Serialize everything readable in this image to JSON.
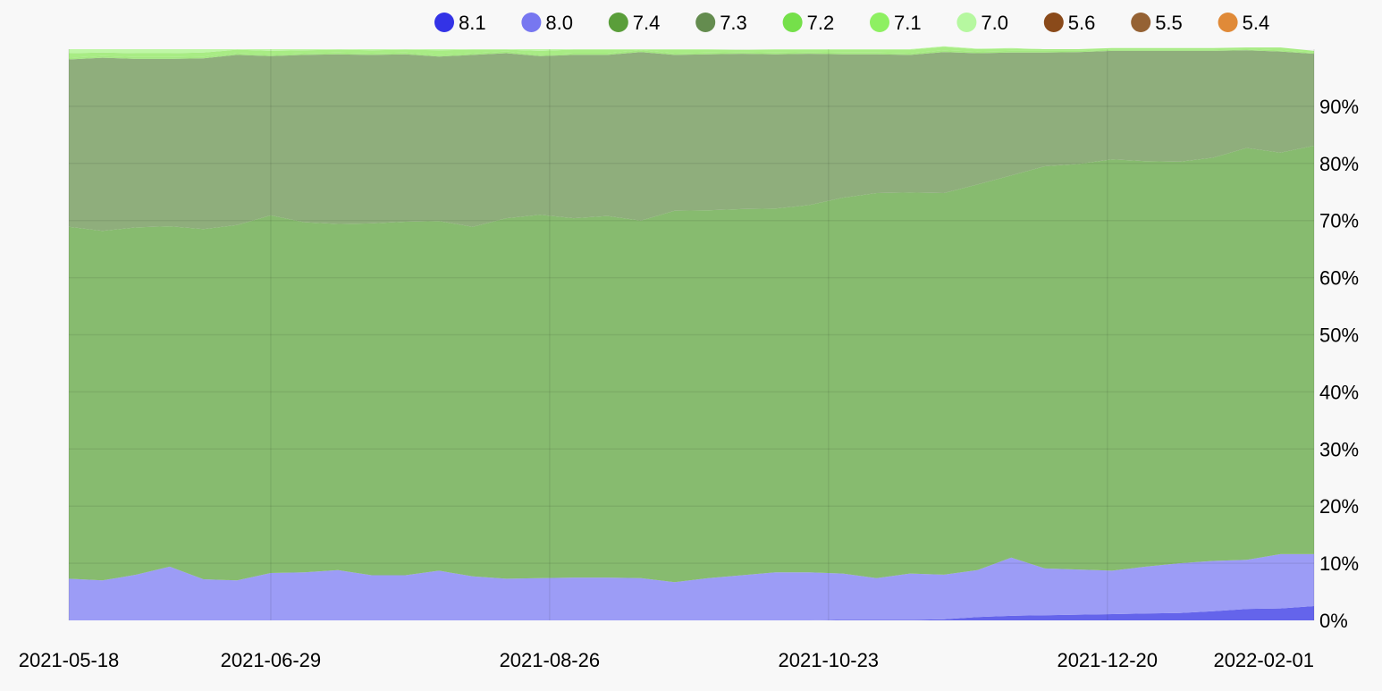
{
  "chart_data": {
    "type": "area",
    "stacked": true,
    "normalized_percent": true,
    "title": "",
    "xlabel": "",
    "ylabel": "",
    "ylim": [
      0,
      100
    ],
    "grid": true,
    "y_axis_position": "right",
    "legend_position": "top",
    "x": [
      "2021-05-18",
      "2021-05-25",
      "2021-06-01",
      "2021-06-08",
      "2021-06-15",
      "2021-06-22",
      "2021-06-29",
      "2021-07-06",
      "2021-07-13",
      "2021-07-20",
      "2021-07-27",
      "2021-08-03",
      "2021-08-10",
      "2021-08-17",
      "2021-08-24",
      "2021-08-31",
      "2021-09-07",
      "2021-09-14",
      "2021-09-21",
      "2021-09-28",
      "2021-10-05",
      "2021-10-12",
      "2021-10-19",
      "2021-10-26",
      "2021-11-02",
      "2021-11-09",
      "2021-11-16",
      "2021-11-23",
      "2021-11-30",
      "2021-12-07",
      "2021-12-14",
      "2021-12-21",
      "2021-12-28",
      "2022-01-04",
      "2022-01-11",
      "2022-01-18",
      "2022-01-25",
      "2022-02-01"
    ],
    "x_ticks": [
      "2021-05-18",
      "2021-06-29",
      "2021-08-26",
      "2021-10-23",
      "2021-12-20",
      "2022-02-01"
    ],
    "y_ticks": [
      "0%",
      "10%",
      "20%",
      "30%",
      "40%",
      "50%",
      "60%",
      "70%",
      "80%",
      "90%"
    ],
    "legend": [
      {
        "name": "8.1",
        "color": "#3333e6"
      },
      {
        "name": "8.0",
        "color": "#7777f0"
      },
      {
        "name": "7.4",
        "color": "#5a9e3a"
      },
      {
        "name": "7.3",
        "color": "#648c4f"
      },
      {
        "name": "7.2",
        "color": "#75e04a"
      },
      {
        "name": "7.1",
        "color": "#8ef062"
      },
      {
        "name": "7.0",
        "color": "#b6f8a0"
      },
      {
        "name": "5.6",
        "color": "#8a4a1a"
      },
      {
        "name": "5.5",
        "color": "#956234"
      },
      {
        "name": "5.4",
        "color": "#e08a38"
      }
    ],
    "series": [
      {
        "name": "8.1",
        "color": "#6464eb",
        "values": [
          0,
          0,
          0,
          0,
          0,
          0,
          0,
          0,
          0,
          0,
          0,
          0,
          0,
          0,
          0,
          0,
          0,
          0,
          0,
          0,
          0,
          0,
          0,
          0.1,
          0.1,
          0.1,
          0.2,
          0.6,
          0.8,
          0.9,
          1.0,
          1.1,
          1.2,
          1.3,
          1.6,
          2.0,
          2.1,
          2.5
        ]
      },
      {
        "name": "8.0",
        "color": "#9c9cf6",
        "values": [
          7.3,
          7.0,
          8.0,
          9.4,
          7.2,
          7.0,
          8.3,
          8.4,
          8.8,
          7.9,
          7.9,
          8.7,
          7.7,
          7.3,
          7.4,
          7.5,
          7.5,
          7.4,
          6.7,
          7.4,
          7.9,
          8.4,
          8.4,
          8.1,
          7.3,
          8.1,
          7.8,
          8.2,
          10.2,
          8.2,
          7.9,
          7.6,
          8.2,
          8.7,
          8.8,
          8.6,
          9.5,
          9.1
        ]
      },
      {
        "name": "7.4",
        "color": "#87bb6f",
        "values": [
          61.6,
          61.2,
          60.8,
          59.6,
          61.3,
          62.2,
          62.6,
          61.3,
          60.6,
          61.6,
          61.9,
          61.2,
          61.2,
          63.1,
          63.6,
          62.9,
          63.3,
          62.6,
          65.0,
          64.4,
          64.1,
          63.7,
          64.3,
          65.8,
          67.4,
          66.7,
          66.8,
          67.5,
          66.9,
          70.4,
          71.0,
          72.0,
          71.0,
          70.3,
          70.6,
          72.1,
          70.3,
          71.5
        ]
      },
      {
        "name": "7.3",
        "color": "#8fae7c",
        "values": [
          29.3,
          30.3,
          29.5,
          29.3,
          29.9,
          29.8,
          27.9,
          29.3,
          29.7,
          29.5,
          29.3,
          28.8,
          30.1,
          28.9,
          27.8,
          28.6,
          28.2,
          29.5,
          27.3,
          27.3,
          27.2,
          27.0,
          26.5,
          25.1,
          24.3,
          24.1,
          24.7,
          23.0,
          21.5,
          19.9,
          19.6,
          19.0,
          19.3,
          19.4,
          18.7,
          17.1,
          17.7,
          16.1
        ]
      },
      {
        "name": "7.2",
        "color": "#a4e881",
        "values": [
          0.3,
          0.3,
          0.3,
          0.3,
          0.3,
          0.3,
          0.3,
          0.3,
          0.3,
          0.3,
          0.3,
          0.3,
          0.3,
          0.3,
          0.3,
          0.3,
          0.3,
          0.3,
          0.3,
          0.3,
          0.3,
          0.3,
          0.3,
          0.3,
          0.3,
          0.3,
          0.3,
          0.3,
          0.3,
          0.3,
          0.2,
          0.2,
          0.2,
          0.2,
          0.2,
          0.2,
          0.2,
          0.2
        ]
      },
      {
        "name": "7.1",
        "color": "#a8ec84",
        "values": [
          0.8,
          0.6,
          0.7,
          0.7,
          0.7,
          0.6,
          0.6,
          0.5,
          0.5,
          0.5,
          0.5,
          0.8,
          0.6,
          0.3,
          0.6,
          0.6,
          0.6,
          0.1,
          0.6,
          0.5,
          0.4,
          0.5,
          0.4,
          0.5,
          0.5,
          0.6,
          0.6,
          0.4,
          0.4,
          0.3,
          0.3,
          0.3,
          0.3,
          0.3,
          0.3,
          0.3,
          0.5,
          0.3
        ]
      },
      {
        "name": "7.0",
        "color": "#bff6a6",
        "values": [
          0.7,
          0.6,
          0.7,
          0.7,
          0.6,
          0.1,
          0.3,
          0.2,
          0.1,
          0.2,
          0.1,
          0.2,
          0.1,
          0.1,
          0.3,
          0.1,
          0.1,
          0.1,
          0.1,
          0.1,
          0.0,
          0.1,
          0.1,
          0.1,
          0.1,
          0.1,
          0.1,
          0.1,
          0.1,
          0.0,
          0.0,
          0.0,
          0.0,
          0.0,
          0.0,
          0.0,
          0.0,
          0.0
        ]
      },
      {
        "name": "5.6",
        "color": "#8a4a1a",
        "values": [
          0,
          0,
          0,
          0,
          0,
          0,
          0,
          0,
          0,
          0,
          0,
          0,
          0,
          0,
          0,
          0,
          0,
          0,
          0,
          0,
          0,
          0,
          0,
          0,
          0,
          0,
          0,
          0,
          0,
          0,
          0,
          0,
          0,
          0,
          0,
          0,
          0,
          0
        ]
      },
      {
        "name": "5.5",
        "color": "#956234",
        "values": [
          0,
          0,
          0,
          0,
          0,
          0,
          0,
          0,
          0,
          0,
          0,
          0,
          0,
          0,
          0,
          0,
          0,
          0,
          0,
          0,
          0,
          0,
          0,
          0,
          0,
          0,
          0,
          0,
          0,
          0,
          0,
          0,
          0,
          0,
          0,
          0,
          0,
          0
        ]
      },
      {
        "name": "5.4",
        "color": "#e08a38",
        "values": [
          0,
          0,
          0,
          0,
          0,
          0,
          0,
          0,
          0,
          0,
          0,
          0,
          0,
          0,
          0,
          0,
          0,
          0,
          0,
          0,
          0,
          0,
          0,
          0,
          0,
          0,
          0,
          0,
          0,
          0,
          0,
          0,
          0,
          0,
          0,
          0,
          0,
          0
        ]
      }
    ]
  }
}
